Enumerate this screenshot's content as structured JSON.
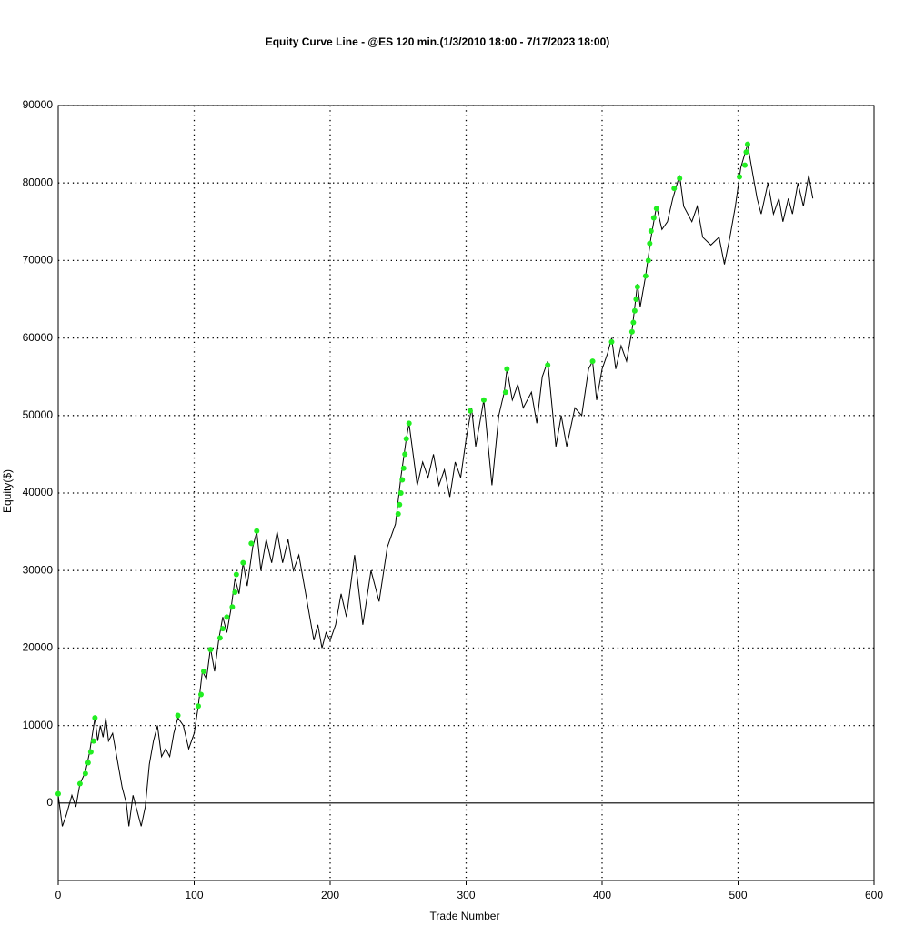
{
  "chart_data": {
    "type": "line",
    "title": "Equity Curve Line - @ES 120 min.(1/3/2010 18:00 - 7/17/2023 18:00)",
    "x_label": "Trade Number",
    "y_label": "Equity($)",
    "xlim": [
      0,
      600
    ],
    "xticks": [
      0,
      100,
      200,
      300,
      400,
      500,
      600
    ],
    "ylim": [
      -10000,
      90000
    ],
    "yticks": [
      0,
      10000,
      20000,
      30000,
      40000,
      50000,
      60000,
      70000,
      80000,
      90000
    ],
    "grid": true,
    "series": [
      {
        "color": "#000000",
        "mode": "line",
        "x": [
          0,
          3,
          6,
          10,
          13,
          16,
          20,
          23,
          27,
          29,
          31,
          33,
          35,
          37,
          40,
          43,
          47,
          50,
          52,
          55,
          58,
          61,
          64,
          67,
          70,
          73,
          76,
          79,
          82,
          85,
          88,
          92,
          96,
          100,
          103,
          106,
          109,
          112,
          115,
          118,
          121,
          124,
          127,
          130,
          133,
          136,
          139,
          143,
          146,
          149,
          153,
          157,
          161,
          165,
          169,
          173,
          177,
          181,
          185,
          188,
          191,
          194,
          197,
          200,
          204,
          208,
          212,
          218,
          224,
          230,
          236,
          242,
          248,
          252,
          256,
          258,
          261,
          264,
          268,
          272,
          276,
          280,
          284,
          288,
          292,
          296,
          300,
          304,
          307,
          313,
          319,
          324,
          328,
          330,
          334,
          338,
          342,
          348,
          352,
          356,
          360,
          366,
          370,
          374,
          380,
          385,
          390,
          393,
          396,
          400,
          404,
          407,
          410,
          414,
          418,
          422,
          426,
          428,
          432,
          436,
          440,
          444,
          448,
          452,
          457,
          460,
          466,
          470,
          474,
          480,
          486,
          490,
          494,
          498,
          502,
          507,
          510,
          514,
          517,
          522,
          526,
          530,
          533,
          537,
          540,
          544,
          548,
          552,
          555
        ],
        "values": [
          1000,
          -3000,
          -1500,
          1000,
          -500,
          2500,
          4000,
          6500,
          11000,
          8000,
          10000,
          8500,
          11000,
          8000,
          9000,
          6000,
          2000,
          0,
          -3000,
          1000,
          -1000,
          -3000,
          -500,
          5000,
          8000,
          10000,
          6000,
          7000,
          6000,
          9000,
          11000,
          10000,
          7000,
          9000,
          12500,
          17000,
          16000,
          20000,
          17000,
          21000,
          24000,
          22000,
          25000,
          29000,
          27000,
          31000,
          28000,
          33000,
          35000,
          30000,
          34000,
          31000,
          35000,
          31000,
          34000,
          30000,
          32000,
          28000,
          24000,
          21000,
          23000,
          20000,
          22000,
          21000,
          23000,
          27000,
          24000,
          32000,
          23000,
          30000,
          26000,
          33000,
          36000,
          42000,
          47000,
          49000,
          45000,
          41000,
          44000,
          42000,
          45000,
          41000,
          43000,
          39500,
          44000,
          42000,
          47000,
          51000,
          46000,
          52000,
          41000,
          50000,
          53000,
          56000,
          52000,
          54000,
          51000,
          53000,
          49000,
          55000,
          57000,
          46000,
          50000,
          46000,
          51000,
          50000,
          56000,
          57000,
          52000,
          56000,
          58000,
          60000,
          56000,
          59000,
          57000,
          61000,
          67000,
          64000,
          68000,
          73000,
          77000,
          74000,
          75000,
          78000,
          81000,
          77000,
          75000,
          77000,
          73000,
          72000,
          73000,
          69500,
          73000,
          77000,
          82000,
          85000,
          82000,
          78000,
          76000,
          80000,
          76000,
          78000,
          75000,
          78000,
          76000,
          80000,
          77000,
          81000,
          78000
        ]
      },
      {
        "color": "#22ee22",
        "mode": "markers",
        "x": [
          0,
          16,
          20,
          22,
          24,
          26,
          27,
          88,
          103,
          105,
          107,
          112,
          119,
          121,
          124,
          128,
          130,
          131,
          136,
          142,
          146,
          250,
          251,
          252,
          253,
          254,
          255,
          256,
          258,
          303,
          313,
          329,
          330,
          360,
          393,
          407,
          422,
          423,
          424,
          425,
          426,
          432,
          434,
          435,
          436,
          438,
          440,
          453,
          457,
          501,
          505,
          506,
          507
        ],
        "values": [
          1200,
          2500,
          3800,
          5200,
          6600,
          8000,
          11000,
          11300,
          12500,
          14000,
          17000,
          19800,
          21300,
          22500,
          24000,
          25300,
          27200,
          29500,
          31000,
          33500,
          35100,
          37300,
          38500,
          40000,
          41700,
          43200,
          45000,
          47000,
          49000,
          50600,
          52000,
          53000,
          56000,
          56500,
          57000,
          59500,
          60800,
          62000,
          63500,
          65000,
          66600,
          68000,
          70000,
          72200,
          73800,
          75500,
          76700,
          79300,
          80600,
          80800,
          82300,
          84000,
          85000
        ]
      }
    ]
  }
}
